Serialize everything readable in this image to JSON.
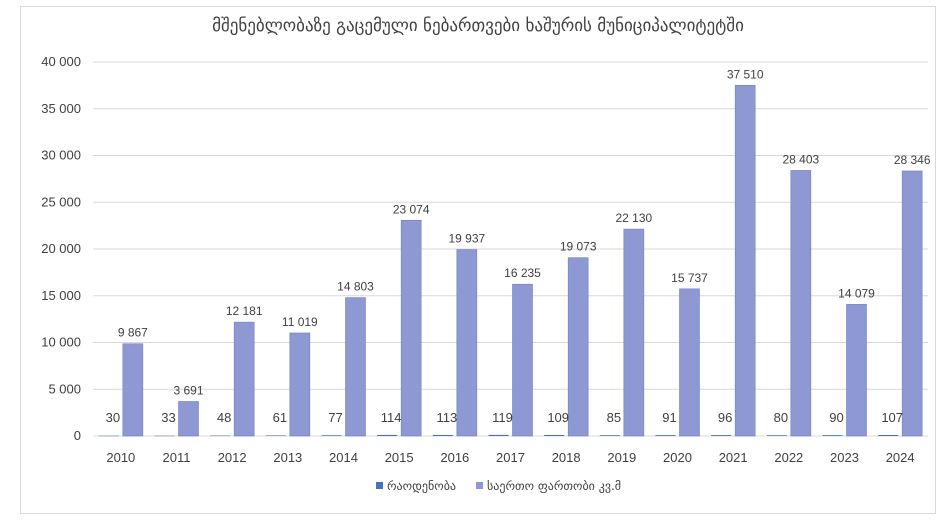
{
  "chart_data": {
    "type": "bar",
    "title": "მშენებლობაზე გაცემული ნებართვები ხაშურის მუნიციპალიტეტში",
    "categories": [
      "2010",
      "2011",
      "2012",
      "2013",
      "2014",
      "2015",
      "2016",
      "2017",
      "2018",
      "2019",
      "2020",
      "2021",
      "2022",
      "2023",
      "2024"
    ],
    "series": [
      {
        "name": "რაოდენობა",
        "values": [
          30,
          33,
          48,
          61,
          77,
          114,
          113,
          119,
          109,
          85,
          91,
          96,
          80,
          90,
          107
        ],
        "value_labels": [
          "30",
          "33",
          "48",
          "61",
          "77",
          "114",
          "113",
          "119",
          "109",
          "85",
          "91",
          "96",
          "80",
          "90",
          "107"
        ],
        "color": "#4472c4"
      },
      {
        "name": "საერთო ფართობი კვ.მ",
        "values": [
          9867,
          3691,
          12181,
          11019,
          14803,
          23074,
          19937,
          16235,
          19073,
          22130,
          15737,
          37510,
          28403,
          14079,
          28346
        ],
        "value_labels": [
          "9 867",
          "3 691",
          "12 181",
          "11 019",
          "14 803",
          "23 074",
          "19 937",
          "16 235",
          "19 073",
          "22 130",
          "15 737",
          "37 510",
          "28 403",
          "14 079",
          "28 346"
        ],
        "color": "#8e98d3"
      }
    ],
    "ylim": [
      0,
      40000
    ],
    "yticks": [
      0,
      5000,
      10000,
      15000,
      20000,
      25000,
      30000,
      35000,
      40000
    ],
    "ytick_labels": [
      "0",
      "5 000",
      "10 000",
      "15 000",
      "20 000",
      "25 000",
      "30 000",
      "35 000",
      "40 000"
    ],
    "grid": true,
    "legend_position": "bottom",
    "xlabel": "",
    "ylabel": ""
  }
}
